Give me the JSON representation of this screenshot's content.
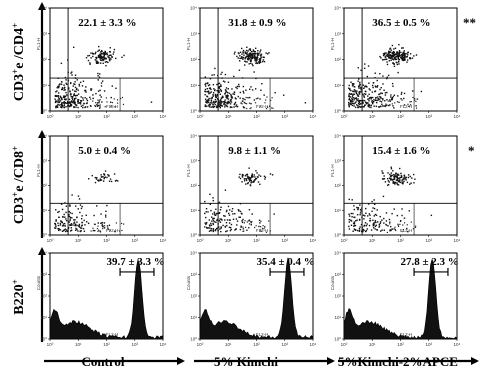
{
  "chart_data": {
    "type": "flow-cytometry-panel-grid",
    "columns": [
      "Control",
      "5% Kimchi",
      "5%Kimchi-2%APCE"
    ],
    "rows": [
      {
        "label": "CD3+e /CD4+",
        "label_main": "CD3",
        "label_sup1": "+",
        "label_mid": "e /CD4",
        "label_sup2": "+",
        "kind": "dot",
        "values": [
          "22.1 ± 3.3 %",
          "31.8 ± 0.9 %",
          "36.5 ± 0.5 %"
        ],
        "means": [
          22.1,
          31.8,
          36.5
        ],
        "sd": [
          3.3,
          0.9,
          0.5
        ],
        "significance": "**",
        "axis_x": "FL2-H",
        "axis_y": "FL1-H"
      },
      {
        "label": "CD3+e /CD8+",
        "label_main": "CD3",
        "label_sup1": "+",
        "label_mid": "e /CD8",
        "label_sup2": "+",
        "kind": "dot",
        "values": [
          "5.0 ± 0.4 %",
          "9.8 ± 1.1 %",
          "15.4 ± 1.6 %"
        ],
        "means": [
          5.0,
          9.8,
          15.4
        ],
        "sd": [
          0.4,
          1.1,
          1.6
        ],
        "significance": "*",
        "axis_x": "FL2-H",
        "axis_y": "FL1-H"
      },
      {
        "label": "B220+",
        "label_main": "B220",
        "label_sup1": "+",
        "label_mid": "",
        "label_sup2": "",
        "kind": "histogram",
        "values": [
          "39.7 ± 3.3 %",
          "35.4 ± 0.4 %",
          "27.8 ± 2.3 %"
        ],
        "means": [
          39.7,
          35.4,
          27.8
        ],
        "sd": [
          3.3,
          0.4,
          2.3
        ],
        "significance": "",
        "axis_x": "FL2-H",
        "axis_y": "Counts"
      }
    ],
    "log_tick_labels": [
      "10⁰",
      "10¹",
      "10²",
      "10³",
      "10⁴"
    ]
  }
}
